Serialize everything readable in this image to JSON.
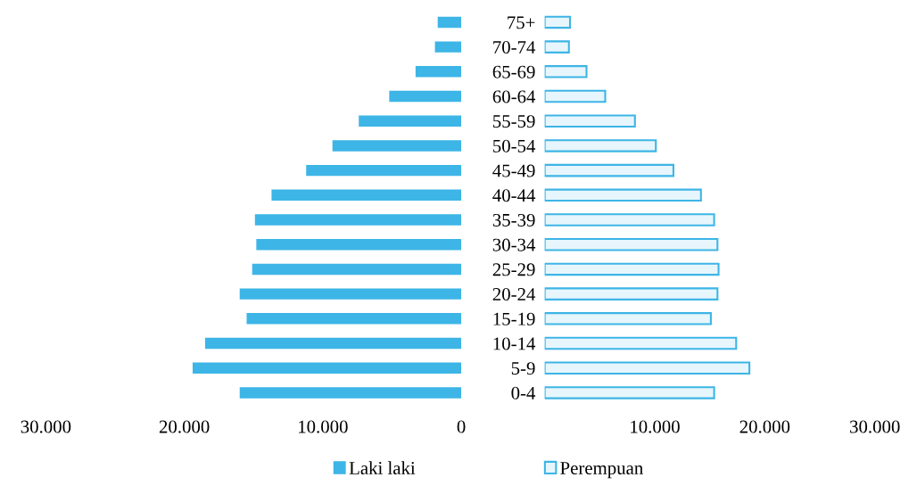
{
  "chart_data": [
    {
      "type": "bar",
      "orientation": "horizontal",
      "categories": [
        "75+",
        "70-74",
        "65-69",
        "60-64",
        "55-59",
        "50-54",
        "45-49",
        "40-44",
        "35-39",
        "30-34",
        "25-29",
        "20-24",
        "15-19",
        "10-14",
        "5-9",
        "0-4"
      ],
      "series": [
        {
          "name": "Laki laki",
          "color": "#3db5e6",
          "values": [
            1700,
            1900,
            3300,
            5200,
            7400,
            9300,
            11200,
            13700,
            14900,
            14800,
            15100,
            16000,
            15500,
            18500,
            19400,
            16000
          ]
        }
      ],
      "xlim": [
        30000,
        0
      ],
      "xticks": [
        {
          "value": 30000,
          "label": "30.000"
        },
        {
          "value": 20000,
          "label": "20.000"
        },
        {
          "value": 10000,
          "label": "10.000"
        },
        0
      ],
      "legend": "bottom",
      "grid": false
    },
    {
      "type": "bar",
      "orientation": "horizontal",
      "categories": [
        null,
        null,
        null,
        null,
        null,
        null,
        null,
        null,
        null,
        null,
        null,
        null,
        null,
        null,
        null,
        null
      ],
      "series": [
        {
          "name": "Perempuan",
          "color": "#3db5e6",
          "values": [
            2300,
            2200,
            3800,
            5500,
            8200,
            10100,
            11700,
            14200,
            15400,
            15700,
            15800,
            15700,
            15100,
            17400,
            18600,
            15400
          ]
        }
      ],
      "xlim": [
        0,
        30000
      ],
      "xticks": [
        {
          "value": 10000,
          "label": "10.000"
        },
        {
          "value": 20000,
          "label": "20.000"
        },
        {
          "value": 30000,
          "label": "30.000"
        }
      ],
      "tick_labels": "x",
      "legend": "bottom",
      "grid": false
    }
  ]
}
